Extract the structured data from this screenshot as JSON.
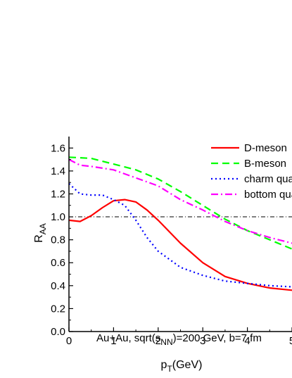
{
  "chart_data": {
    "type": "line",
    "xlabel_main": "p",
    "xlabel_sub": "T",
    "xlabel_unit": "(GeV)",
    "ylabel_main": "R",
    "ylabel_sub": "AA",
    "xlim": [
      0,
      5
    ],
    "ylim": [
      0.0,
      1.7
    ],
    "x_ticks": [
      "0",
      "1",
      "2",
      "3",
      "4",
      "5"
    ],
    "y_ticks": [
      "0.0",
      "0.2",
      "0.4",
      "0.6",
      "0.8",
      "1.0",
      "1.2",
      "1.4",
      "1.6"
    ],
    "reference_line_y": 1.0,
    "annotation": {
      "prefix": "Au+Au, sqrt(s",
      "sub": "NN",
      "suffix": ")=200 GeV, b=7 fm"
    },
    "series": [
      {
        "name": "D-meson",
        "color": "#ff0000",
        "dash": "solid",
        "x": [
          0.0,
          0.25,
          0.5,
          0.75,
          1.0,
          1.25,
          1.5,
          1.75,
          2.0,
          2.5,
          3.0,
          3.5,
          4.0,
          4.5,
          5.0
        ],
        "y": [
          0.97,
          0.96,
          1.01,
          1.08,
          1.14,
          1.15,
          1.13,
          1.06,
          0.97,
          0.77,
          0.6,
          0.48,
          0.42,
          0.38,
          0.36
        ]
      },
      {
        "name": "B-meson",
        "color": "#00ff00",
        "dash": "dash",
        "x": [
          0.0,
          0.5,
          1.0,
          1.5,
          2.0,
          2.5,
          3.0,
          3.5,
          4.0,
          4.5,
          5.0
        ],
        "y": [
          1.52,
          1.51,
          1.46,
          1.41,
          1.33,
          1.22,
          1.1,
          0.98,
          0.88,
          0.8,
          0.72
        ]
      },
      {
        "name": "charm quark",
        "color": "#0000ff",
        "dash": "dot",
        "x": [
          0.0,
          0.25,
          0.5,
          0.75,
          1.0,
          1.25,
          1.5,
          1.75,
          2.0,
          2.5,
          3.0,
          3.5,
          4.0,
          4.5,
          5.0
        ],
        "y": [
          1.29,
          1.2,
          1.19,
          1.19,
          1.15,
          1.1,
          0.97,
          0.82,
          0.7,
          0.56,
          0.49,
          0.44,
          0.42,
          0.4,
          0.39
        ]
      },
      {
        "name": "bottom quark",
        "color": "#ff00ff",
        "dash": "dashdot",
        "x": [
          0.0,
          0.25,
          0.5,
          1.0,
          1.5,
          2.0,
          2.5,
          3.0,
          3.5,
          4.0,
          4.5,
          5.0
        ],
        "y": [
          1.5,
          1.45,
          1.44,
          1.41,
          1.34,
          1.27,
          1.15,
          1.06,
          0.96,
          0.88,
          0.82,
          0.77
        ]
      }
    ],
    "legend_placement": "top-right"
  }
}
